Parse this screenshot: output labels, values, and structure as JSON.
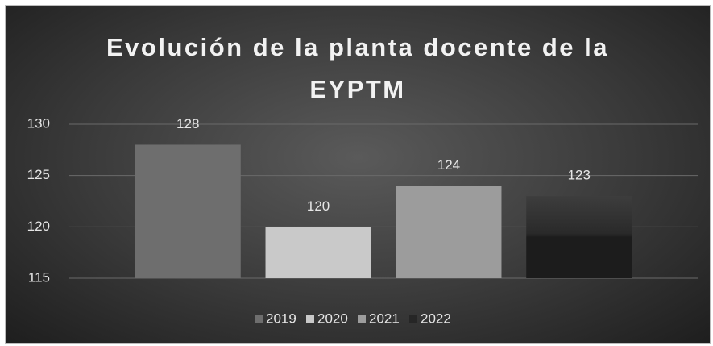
{
  "chart_data": {
    "type": "bar",
    "title": "Evolución de la planta docente de la EYPTM",
    "categories": [
      null
    ],
    "series": [
      {
        "name": "2019",
        "color": "#6e6e6e",
        "values": [
          128
        ]
      },
      {
        "name": "2020",
        "color": "#c9c9c9",
        "values": [
          120
        ]
      },
      {
        "name": "2021",
        "color": "#9c9c9c",
        "values": [
          124
        ]
      },
      {
        "name": "2022",
        "color": "#262626",
        "values": [
          123
        ]
      }
    ],
    "ylim": [
      115,
      130
    ],
    "yticks": [
      115,
      120,
      125,
      130
    ],
    "grid": true,
    "legend": "bottom"
  }
}
